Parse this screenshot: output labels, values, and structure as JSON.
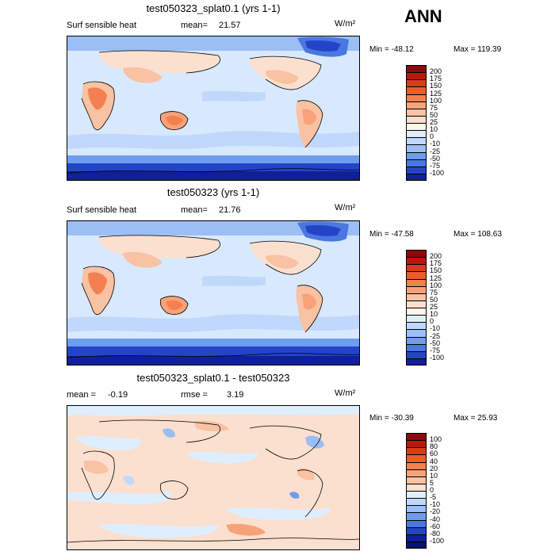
{
  "season": "ANN",
  "panels": [
    {
      "id": "p1",
      "title": "test050323_splat0.1 (yrs 1-1)",
      "left_label": "Surf sensible heat",
      "stat_label": "mean=",
      "stat_value": "21.57",
      "stat2_label": "",
      "stat2_value": "",
      "units": "W/m²",
      "min_label": "Min = -48.12",
      "max_label": "Max = 119.39",
      "colorbar_labels": [
        "200",
        "175",
        "150",
        "125",
        "100",
        "75",
        "50",
        "25",
        "10",
        "0",
        "-10",
        "-25",
        "-50",
        "-75",
        "-100"
      ],
      "colorbar_colors": [
        "#8c0a0a",
        "#b8190d",
        "#dc3a1c",
        "#ef5a2e",
        "#f5804f",
        "#f7a279",
        "#f8c2a3",
        "#fbe0cf",
        "#fff5ea",
        "#dfeeff",
        "#c0d8fb",
        "#9bbef5",
        "#6f9ded",
        "#4a78e0",
        "#2444c8",
        "#10209a"
      ]
    },
    {
      "id": "p2",
      "title": "test050323 (yrs 1-1)",
      "left_label": "Surf sensible heat",
      "stat_label": "mean=",
      "stat_value": "21.76",
      "stat2_label": "",
      "stat2_value": "",
      "units": "W/m²",
      "min_label": "Min = -47.58",
      "max_label": "Max = 108.63",
      "colorbar_labels": [
        "200",
        "175",
        "150",
        "125",
        "100",
        "75",
        "50",
        "25",
        "10",
        "0",
        "-10",
        "-25",
        "-50",
        "-75",
        "-100"
      ],
      "colorbar_colors": [
        "#8c0a0a",
        "#b8190d",
        "#dc3a1c",
        "#ef5a2e",
        "#f5804f",
        "#f7a279",
        "#f8c2a3",
        "#fbe0cf",
        "#fff5ea",
        "#dfeeff",
        "#c0d8fb",
        "#9bbef5",
        "#6f9ded",
        "#4a78e0",
        "#2444c8",
        "#10209a"
      ]
    },
    {
      "id": "p3",
      "title": "test050323_splat0.1 - test050323",
      "left_label": "mean =",
      "stat_label": "-0.19",
      "stat_value": "",
      "stat2_label": "rmse =",
      "stat2_value": "3.19",
      "units": "W/m²",
      "min_label": "Min = -30.39",
      "max_label": "Max = 25.93",
      "colorbar_labels": [
        "100",
        "80",
        "60",
        "40",
        "20",
        "10",
        "5",
        "0",
        "-5",
        "-10",
        "-20",
        "-40",
        "-60",
        "-80",
        "-100"
      ],
      "colorbar_colors": [
        "#8c0a0a",
        "#b8190d",
        "#dc3a1c",
        "#ef5a2e",
        "#f5804f",
        "#f7a279",
        "#f8c2a3",
        "#fbe0cf",
        "#dfeeff",
        "#c0d8fb",
        "#9bbef5",
        "#6f9ded",
        "#4a78e0",
        "#2444c8",
        "#10209a",
        "#0a1270"
      ]
    }
  ]
}
